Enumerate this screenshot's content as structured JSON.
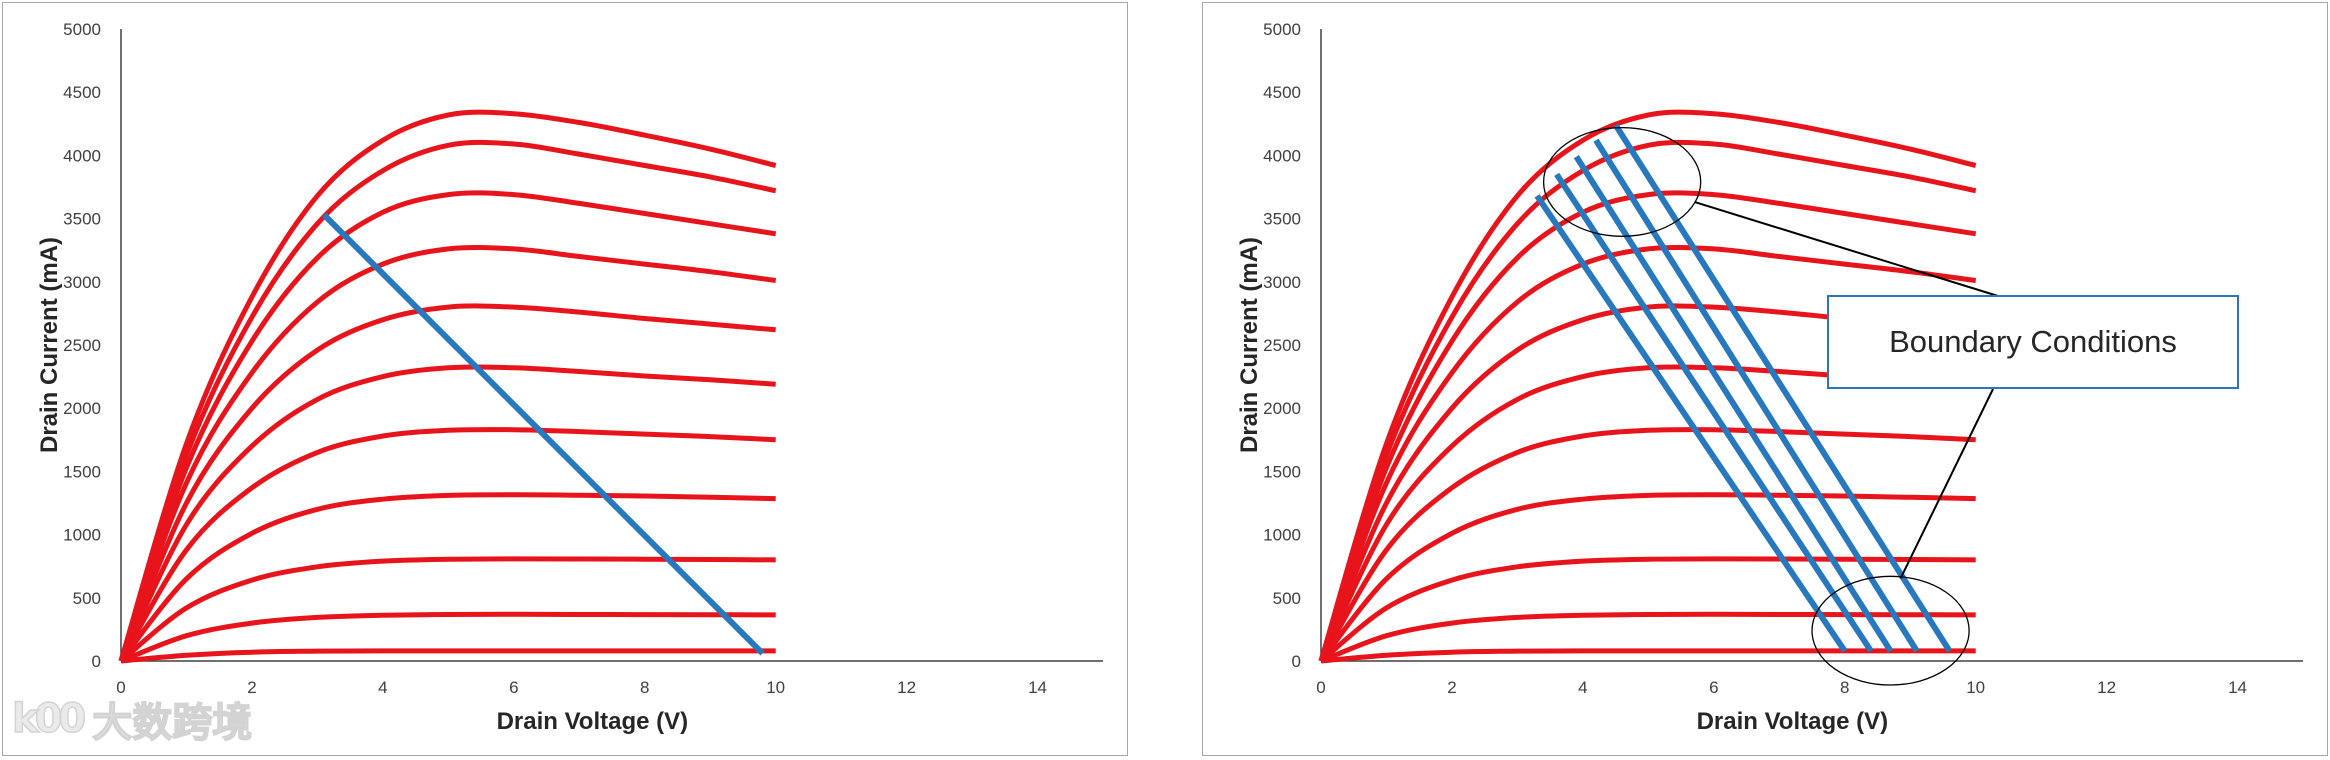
{
  "chart_data": [
    {
      "type": "line",
      "panel": "left",
      "xlabel": "Drain Voltage (V)",
      "ylabel": "Drain Current (mA)",
      "xlim": [
        0,
        15
      ],
      "ylim": [
        0,
        5000
      ],
      "x_ticks": [
        "0",
        "2",
        "4",
        "6",
        "8",
        "10",
        "12",
        "14"
      ],
      "y_ticks": [
        "0",
        "500",
        "1000",
        "1500",
        "2000",
        "2500",
        "3000",
        "3500",
        "4000",
        "4500",
        "5000"
      ],
      "grid": false,
      "curve_color": "#e8141b",
      "load_line_color": "#2878bd",
      "series": [
        {
          "points": [
            [
              0,
              0
            ],
            [
              1,
              45
            ],
            [
              2,
              70
            ],
            [
              3,
              78
            ],
            [
              4,
              80
            ],
            [
              5,
              80
            ],
            [
              6,
              80
            ],
            [
              7,
              80
            ],
            [
              8,
              80
            ],
            [
              9,
              80
            ],
            [
              10,
              80
            ]
          ]
        },
        {
          "points": [
            [
              0,
              0
            ],
            [
              1,
              200
            ],
            [
              2,
              300
            ],
            [
              3,
              345
            ],
            [
              4,
              362
            ],
            [
              5,
              368
            ],
            [
              6,
              370
            ],
            [
              7,
              368
            ],
            [
              8,
              367
            ],
            [
              9,
              366
            ],
            [
              10,
              365
            ]
          ]
        },
        {
          "points": [
            [
              0,
              0
            ],
            [
              1,
              420
            ],
            [
              2,
              640
            ],
            [
              3,
              745
            ],
            [
              4,
              790
            ],
            [
              5,
              805
            ],
            [
              6,
              808
            ],
            [
              7,
              807
            ],
            [
              8,
              805
            ],
            [
              9,
              803
            ],
            [
              10,
              800
            ]
          ]
        },
        {
          "points": [
            [
              0,
              0
            ],
            [
              1,
              650
            ],
            [
              2,
              1010
            ],
            [
              3,
              1200
            ],
            [
              4,
              1280
            ],
            [
              5,
              1310
            ],
            [
              6,
              1315
            ],
            [
              7,
              1312
            ],
            [
              8,
              1305
            ],
            [
              9,
              1295
            ],
            [
              10,
              1285
            ]
          ]
        },
        {
          "points": [
            [
              0,
              0
            ],
            [
              1,
              880
            ],
            [
              2,
              1370
            ],
            [
              3,
              1650
            ],
            [
              4,
              1780
            ],
            [
              5,
              1825
            ],
            [
              6,
              1830
            ],
            [
              7,
              1815
            ],
            [
              8,
              1795
            ],
            [
              9,
              1775
            ],
            [
              10,
              1750
            ]
          ]
        },
        {
          "points": [
            [
              0,
              0
            ],
            [
              1,
              1080
            ],
            [
              2,
              1700
            ],
            [
              3,
              2070
            ],
            [
              4,
              2250
            ],
            [
              5,
              2320
            ],
            [
              6,
              2320
            ],
            [
              7,
              2290
            ],
            [
              8,
              2255
            ],
            [
              9,
              2225
            ],
            [
              10,
              2190
            ]
          ]
        },
        {
          "points": [
            [
              0,
              0
            ],
            [
              1,
              1250
            ],
            [
              2,
              2000
            ],
            [
              3,
              2460
            ],
            [
              4,
              2700
            ],
            [
              5,
              2800
            ],
            [
              6,
              2800
            ],
            [
              7,
              2760
            ],
            [
              8,
              2710
            ],
            [
              9,
              2665
            ],
            [
              10,
              2620
            ]
          ]
        },
        {
          "points": [
            [
              0,
              0
            ],
            [
              1,
              1410
            ],
            [
              2,
              2280
            ],
            [
              3,
              2840
            ],
            [
              4,
              3140
            ],
            [
              5,
              3260
            ],
            [
              6,
              3260
            ],
            [
              7,
              3200
            ],
            [
              8,
              3140
            ],
            [
              9,
              3080
            ],
            [
              10,
              3010
            ]
          ]
        },
        {
          "points": [
            [
              0,
              0
            ],
            [
              1,
              1530
            ],
            [
              2,
              2530
            ],
            [
              3,
              3190
            ],
            [
              4,
              3550
            ],
            [
              5,
              3690
            ],
            [
              6,
              3690
            ],
            [
              7,
              3620
            ],
            [
              8,
              3540
            ],
            [
              9,
              3460
            ],
            [
              10,
              3380
            ]
          ]
        },
        {
          "points": [
            [
              0,
              0
            ],
            [
              1,
              1630
            ],
            [
              2,
              2720
            ],
            [
              3,
              3460
            ],
            [
              4,
              3880
            ],
            [
              5,
              4080
            ],
            [
              6,
              4090
            ],
            [
              7,
              4010
            ],
            [
              8,
              3920
            ],
            [
              9,
              3830
            ],
            [
              10,
              3720
            ]
          ]
        },
        {
          "points": [
            [
              0,
              0
            ],
            [
              1,
              1720
            ],
            [
              2,
              2880
            ],
            [
              3,
              3680
            ],
            [
              4,
              4120
            ],
            [
              5,
              4320
            ],
            [
              6,
              4330
            ],
            [
              7,
              4260
            ],
            [
              8,
              4160
            ],
            [
              9,
              4050
            ],
            [
              10,
              3920
            ]
          ]
        }
      ],
      "load_lines": [
        {
          "from": [
            3.1,
            3530
          ],
          "to": [
            9.8,
            60
          ]
        }
      ]
    },
    {
      "type": "line",
      "panel": "right",
      "xlabel": "Drain Voltage (V)",
      "ylabel": "Drain Current (mA)",
      "xlim": [
        0,
        15
      ],
      "ylim": [
        0,
        5000
      ],
      "x_ticks": [
        "0",
        "2",
        "4",
        "6",
        "8",
        "10",
        "12",
        "14"
      ],
      "y_ticks": [
        "0",
        "500",
        "1000",
        "1500",
        "2000",
        "2500",
        "3000",
        "3500",
        "4000",
        "4500",
        "5000"
      ],
      "grid": false,
      "curve_color": "#e8141b",
      "load_line_color": "#2878bd",
      "series": [
        {
          "points": [
            [
              0,
              0
            ],
            [
              1,
              45
            ],
            [
              2,
              70
            ],
            [
              3,
              78
            ],
            [
              4,
              80
            ],
            [
              5,
              80
            ],
            [
              6,
              80
            ],
            [
              7,
              80
            ],
            [
              8,
              80
            ],
            [
              9,
              80
            ],
            [
              10,
              80
            ]
          ]
        },
        {
          "points": [
            [
              0,
              0
            ],
            [
              1,
              200
            ],
            [
              2,
              300
            ],
            [
              3,
              345
            ],
            [
              4,
              362
            ],
            [
              5,
              368
            ],
            [
              6,
              370
            ],
            [
              7,
              368
            ],
            [
              8,
              367
            ],
            [
              9,
              366
            ],
            [
              10,
              365
            ]
          ]
        },
        {
          "points": [
            [
              0,
              0
            ],
            [
              1,
              420
            ],
            [
              2,
              640
            ],
            [
              3,
              745
            ],
            [
              4,
              790
            ],
            [
              5,
              805
            ],
            [
              6,
              808
            ],
            [
              7,
              807
            ],
            [
              8,
              805
            ],
            [
              9,
              803
            ],
            [
              10,
              800
            ]
          ]
        },
        {
          "points": [
            [
              0,
              0
            ],
            [
              1,
              650
            ],
            [
              2,
              1010
            ],
            [
              3,
              1200
            ],
            [
              4,
              1280
            ],
            [
              5,
              1310
            ],
            [
              6,
              1315
            ],
            [
              7,
              1312
            ],
            [
              8,
              1305
            ],
            [
              9,
              1295
            ],
            [
              10,
              1285
            ]
          ]
        },
        {
          "points": [
            [
              0,
              0
            ],
            [
              1,
              880
            ],
            [
              2,
              1370
            ],
            [
              3,
              1650
            ],
            [
              4,
              1780
            ],
            [
              5,
              1825
            ],
            [
              6,
              1830
            ],
            [
              7,
              1815
            ],
            [
              8,
              1795
            ],
            [
              9,
              1775
            ],
            [
              10,
              1750
            ]
          ]
        },
        {
          "points": [
            [
              0,
              0
            ],
            [
              1,
              1080
            ],
            [
              2,
              1700
            ],
            [
              3,
              2070
            ],
            [
              4,
              2250
            ],
            [
              5,
              2320
            ],
            [
              6,
              2320
            ],
            [
              7,
              2290
            ],
            [
              8,
              2255
            ],
            [
              9,
              2225
            ],
            [
              10,
              2190
            ]
          ]
        },
        {
          "points": [
            [
              0,
              0
            ],
            [
              1,
              1250
            ],
            [
              2,
              2000
            ],
            [
              3,
              2460
            ],
            [
              4,
              2700
            ],
            [
              5,
              2800
            ],
            [
              6,
              2800
            ],
            [
              7,
              2760
            ],
            [
              8,
              2710
            ],
            [
              9,
              2665
            ],
            [
              10,
              2620
            ]
          ]
        },
        {
          "points": [
            [
              0,
              0
            ],
            [
              1,
              1410
            ],
            [
              2,
              2280
            ],
            [
              3,
              2840
            ],
            [
              4,
              3140
            ],
            [
              5,
              3260
            ],
            [
              6,
              3260
            ],
            [
              7,
              3200
            ],
            [
              8,
              3140
            ],
            [
              9,
              3080
            ],
            [
              10,
              3010
            ]
          ]
        },
        {
          "points": [
            [
              0,
              0
            ],
            [
              1,
              1530
            ],
            [
              2,
              2530
            ],
            [
              3,
              3190
            ],
            [
              4,
              3550
            ],
            [
              5,
              3690
            ],
            [
              6,
              3690
            ],
            [
              7,
              3620
            ],
            [
              8,
              3540
            ],
            [
              9,
              3460
            ],
            [
              10,
              3380
            ]
          ]
        },
        {
          "points": [
            [
              0,
              0
            ],
            [
              1,
              1630
            ],
            [
              2,
              2720
            ],
            [
              3,
              3460
            ],
            [
              4,
              3880
            ],
            [
              5,
              4080
            ],
            [
              6,
              4090
            ],
            [
              7,
              4010
            ],
            [
              8,
              3920
            ],
            [
              9,
              3830
            ],
            [
              10,
              3720
            ]
          ]
        },
        {
          "points": [
            [
              0,
              0
            ],
            [
              1,
              1720
            ],
            [
              2,
              2880
            ],
            [
              3,
              3680
            ],
            [
              4,
              4120
            ],
            [
              5,
              4320
            ],
            [
              6,
              4330
            ],
            [
              7,
              4260
            ],
            [
              8,
              4160
            ],
            [
              9,
              4050
            ],
            [
              10,
              3920
            ]
          ]
        }
      ],
      "load_lines": [
        {
          "from": [
            3.3,
            3680
          ],
          "to": [
            8.0,
            80
          ]
        },
        {
          "from": [
            3.6,
            3850
          ],
          "to": [
            8.4,
            80
          ]
        },
        {
          "from": [
            3.9,
            3990
          ],
          "to": [
            8.7,
            80
          ]
        },
        {
          "from": [
            4.2,
            4120
          ],
          "to": [
            9.1,
            80
          ]
        },
        {
          "from": [
            4.5,
            4240
          ],
          "to": [
            9.6,
            80
          ]
        }
      ],
      "annotation": {
        "text": "Boundary Conditions",
        "ellipses": [
          {
            "center": [
              4.6,
              3790
            ],
            "rx_data": 1.2,
            "ry_data": 430
          },
          {
            "center": [
              8.7,
              240
            ],
            "rx_data": 1.2,
            "ry_data": 430
          }
        ]
      }
    }
  ],
  "watermark": {
    "logo": "k00",
    "text": "大数跨境"
  }
}
